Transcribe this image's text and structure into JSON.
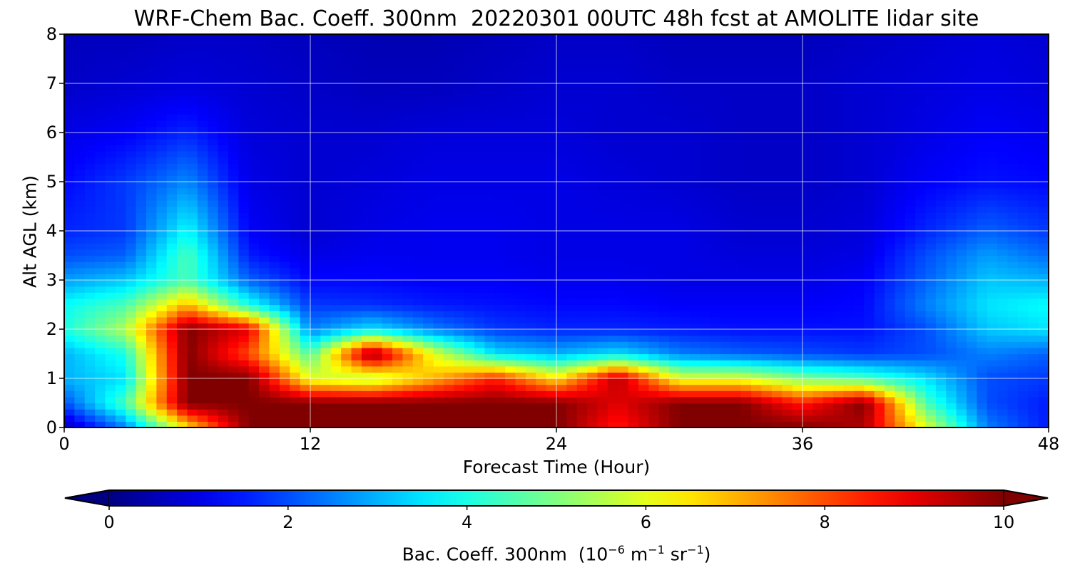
{
  "chart_data": {
    "type": "heatmap",
    "title": "WRF-Chem Bac. Coeff. 300nm  20220301 00UTC 48h fcst at AMOLITE lidar site",
    "xlabel": "Forecast Time (Hour)",
    "ylabel": "Alt AGL (km)",
    "xlim": [
      0,
      48
    ],
    "ylim": [
      0,
      8
    ],
    "xticks": [
      "0",
      "12",
      "24",
      "36",
      "48"
    ],
    "yticks": [
      "0",
      "1",
      "2",
      "3",
      "4",
      "5",
      "6",
      "7",
      "8"
    ],
    "grid": true,
    "colormap": "jet",
    "colorbar": {
      "orientation": "horizontal",
      "extend": "both",
      "range": [
        0,
        10
      ],
      "ticks": [
        "0",
        "2",
        "4",
        "6",
        "8",
        "10"
      ],
      "label_text": "Bac. Coeff. 300nm  (10",
      "label_exp1": "−6",
      "label_mid": " m",
      "label_exp2": "−1",
      "label_mid2": " sr",
      "label_exp3": "−1",
      "label_end": ")"
    },
    "hours": [
      0,
      3,
      6,
      9,
      12,
      15,
      18,
      21,
      24,
      27,
      30,
      33,
      36,
      39,
      42,
      45,
      48
    ],
    "altitudes_km": [
      0,
      0.5,
      1,
      1.5,
      2,
      2.5,
      3,
      3.5,
      4,
      5,
      6,
      7,
      8
    ],
    "values": [
      [
        0.5,
        2.5,
        6.5,
        10,
        10,
        10,
        10,
        10,
        10,
        8.5,
        10,
        10,
        10,
        9.5,
        6,
        2.5,
        1.5
      ],
      [
        2.0,
        4.5,
        10,
        10,
        10,
        10,
        10,
        10,
        10,
        9.0,
        10,
        10,
        8.5,
        10,
        4.5,
        2.0,
        1.5
      ],
      [
        3.0,
        3.5,
        10,
        10,
        6.0,
        5.5,
        7.0,
        8.5,
        6.5,
        9.5,
        6.0,
        6.0,
        5.0,
        4.5,
        3.5,
        2.0,
        1.8
      ],
      [
        3.0,
        4.0,
        10,
        8.0,
        4.5,
        10,
        6.0,
        3.5,
        3.0,
        3.5,
        2.5,
        2.2,
        2.0,
        1.8,
        2.0,
        2.5,
        2.2
      ],
      [
        4.0,
        5.5,
        10,
        9.0,
        2.5,
        3.5,
        2.5,
        1.8,
        1.6,
        1.6,
        1.5,
        1.4,
        1.4,
        1.4,
        2.0,
        3.2,
        3.5
      ],
      [
        3.8,
        4.5,
        7.0,
        4.0,
        1.8,
        1.7,
        1.5,
        1.4,
        1.3,
        1.3,
        1.2,
        1.2,
        1.2,
        1.3,
        2.5,
        3.5,
        3.8
      ],
      [
        2.8,
        3.2,
        4.5,
        2.2,
        1.3,
        1.3,
        1.2,
        1.2,
        1.1,
        1.1,
        1.0,
        1.0,
        1.0,
        1.2,
        2.2,
        3.2,
        3.0
      ],
      [
        2.0,
        2.2,
        4.5,
        1.5,
        1.0,
        1.1,
        1.1,
        1.1,
        1.0,
        1.0,
        1.0,
        0.9,
        0.9,
        1.0,
        2.0,
        2.8,
        2.3
      ],
      [
        1.6,
        1.8,
        3.8,
        1.2,
        0.8,
        1.0,
        1.1,
        1.1,
        1.0,
        1.0,
        1.0,
        0.8,
        0.8,
        0.9,
        1.6,
        2.2,
        1.8
      ],
      [
        1.3,
        1.8,
        2.6,
        1.0,
        0.8,
        0.9,
        1.0,
        1.0,
        1.0,
        0.9,
        0.8,
        0.7,
        0.7,
        0.8,
        1.2,
        1.4,
        1.3
      ],
      [
        1.0,
        1.2,
        1.6,
        0.9,
        0.8,
        0.8,
        0.9,
        0.9,
        0.9,
        0.8,
        0.8,
        0.7,
        0.7,
        0.8,
        1.0,
        1.2,
        1.1
      ],
      [
        0.7,
        0.8,
        0.9,
        0.8,
        0.7,
        0.6,
        0.6,
        0.7,
        0.8,
        0.8,
        0.7,
        0.7,
        0.7,
        0.8,
        0.9,
        1.0,
        0.9
      ],
      [
        0.6,
        0.6,
        0.7,
        0.7,
        0.6,
        0.5,
        0.5,
        0.6,
        0.7,
        0.7,
        0.6,
        0.6,
        0.6,
        0.7,
        0.8,
        0.9,
        0.8
      ]
    ]
  }
}
